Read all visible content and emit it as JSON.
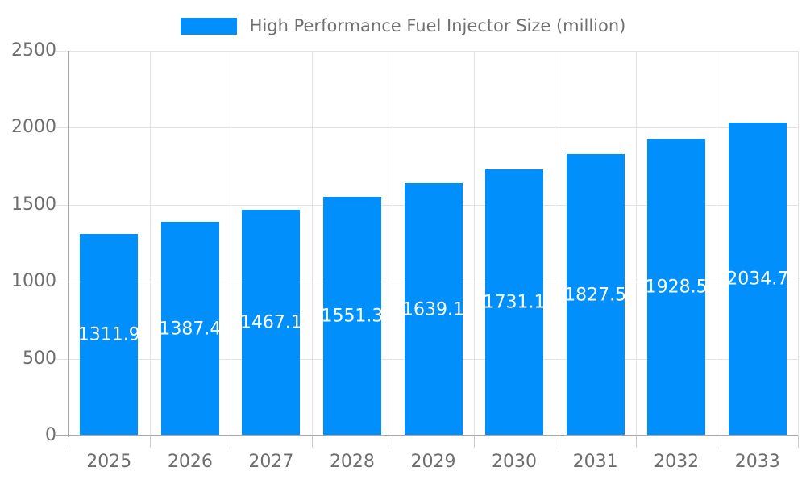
{
  "legend": {
    "label": "High Performance Fuel Injector Size (million)",
    "swatch_color": "#008FFB"
  },
  "chart_data": {
    "type": "bar",
    "title": "High Performance Fuel Injector Size (million)",
    "categories": [
      "2025",
      "2026",
      "2027",
      "2028",
      "2029",
      "2030",
      "2031",
      "2032",
      "2033"
    ],
    "series": [
      {
        "name": "High Performance Fuel Injector Size (million)",
        "values": [
          1311.9,
          1387.4,
          1467.1,
          1551.3,
          1639.1,
          1731.1,
          1827.5,
          1928.5,
          2034.7
        ]
      }
    ],
    "value_labels": [
      "1311.9",
      "1387.4",
      "1467.1",
      "1551.3",
      "1639.1",
      "1731.1",
      "1827.5",
      "1928.5",
      "2034.7"
    ],
    "xlabel": "",
    "ylabel": "",
    "ylim": [
      0,
      2500
    ],
    "yticks": [
      0,
      500,
      1000,
      1500,
      2000,
      2500
    ],
    "grid": "both",
    "legend_position": "top-center",
    "colors": {
      "bar": "#008FFB",
      "value_label": "#FFFFFF",
      "axis_label": "#6E6E6E",
      "legend_label": "#707070",
      "gridline": "#E3E3E3",
      "axis_line": "#A9A9A9"
    }
  }
}
